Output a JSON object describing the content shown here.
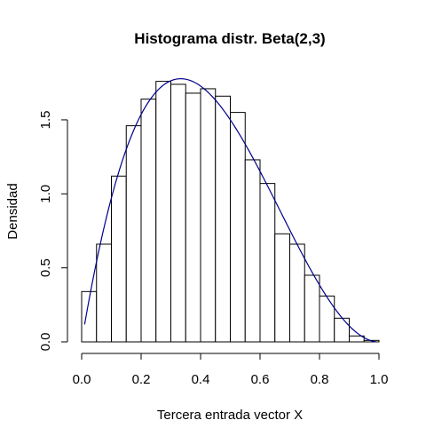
{
  "chart_data": {
    "type": "bar",
    "title": "Histograma distr. Beta(2,3)",
    "xlabel": "Tercera entrada vector X",
    "ylabel": "Densidad",
    "xlim": [
      0,
      1
    ],
    "ylim": [
      0,
      1.8
    ],
    "x_ticks": [
      "0.0",
      "0.2",
      "0.4",
      "0.6",
      "0.8",
      "1.0"
    ],
    "y_ticks": [
      "0.0",
      "0.5",
      "1.0",
      "1.5"
    ],
    "bins": [
      {
        "x0": 0.0,
        "x1": 0.05,
        "density": 0.34
      },
      {
        "x0": 0.05,
        "x1": 0.1,
        "density": 0.66
      },
      {
        "x0": 0.1,
        "x1": 0.15,
        "density": 1.12
      },
      {
        "x0": 0.15,
        "x1": 0.2,
        "density": 1.46
      },
      {
        "x0": 0.2,
        "x1": 0.25,
        "density": 1.64
      },
      {
        "x0": 0.25,
        "x1": 0.3,
        "density": 1.76
      },
      {
        "x0": 0.3,
        "x1": 0.35,
        "density": 1.74
      },
      {
        "x0": 0.35,
        "x1": 0.4,
        "density": 1.68
      },
      {
        "x0": 0.4,
        "x1": 0.45,
        "density": 1.71
      },
      {
        "x0": 0.45,
        "x1": 0.5,
        "density": 1.66
      },
      {
        "x0": 0.5,
        "x1": 0.55,
        "density": 1.55
      },
      {
        "x0": 0.55,
        "x1": 0.6,
        "density": 1.23
      },
      {
        "x0": 0.6,
        "x1": 0.65,
        "density": 1.07
      },
      {
        "x0": 0.65,
        "x1": 0.7,
        "density": 0.73
      },
      {
        "x0": 0.7,
        "x1": 0.75,
        "density": 0.66
      },
      {
        "x0": 0.75,
        "x1": 0.8,
        "density": 0.45
      },
      {
        "x0": 0.8,
        "x1": 0.85,
        "density": 0.31
      },
      {
        "x0": 0.85,
        "x1": 0.9,
        "density": 0.16
      },
      {
        "x0": 0.9,
        "x1": 0.95,
        "density": 0.04
      },
      {
        "x0": 0.95,
        "x1": 1.0,
        "density": 0.01
      }
    ],
    "density_curve": {
      "function": "beta",
      "alpha": 2,
      "beta": 3,
      "x_range": [
        0.01,
        0.99
      ],
      "color": "#00008b"
    },
    "grid": false,
    "bar_fill": "#ffffff",
    "bar_stroke": "#000000"
  }
}
